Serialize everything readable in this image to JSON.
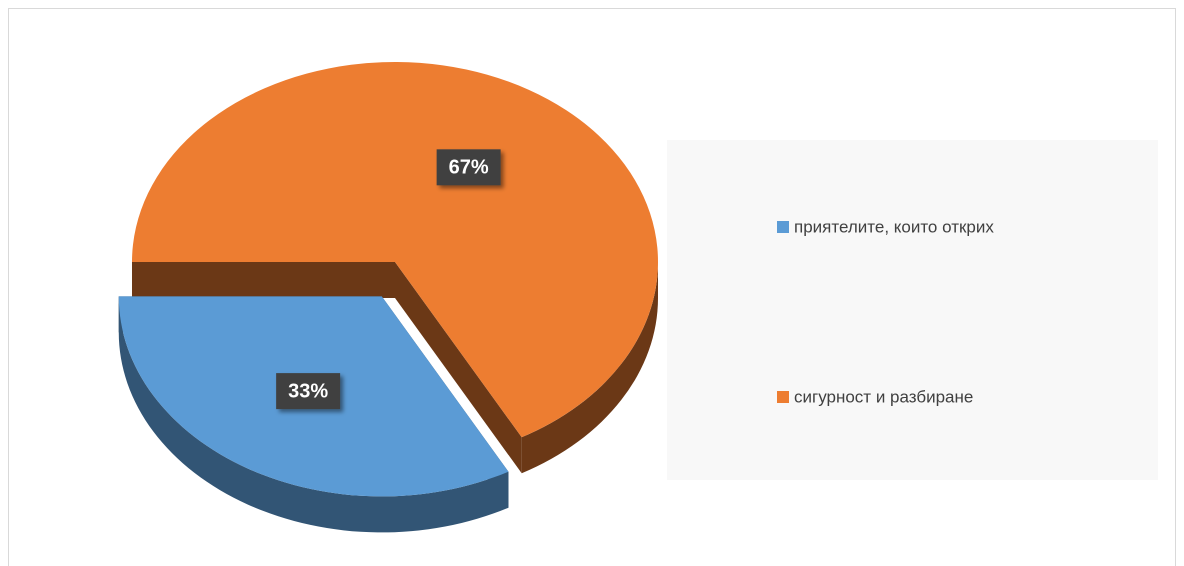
{
  "chart_data": {
    "type": "pie",
    "categories": [
      "приятелите, които открих",
      "сигурност и разбиране"
    ],
    "values": [
      33,
      67
    ],
    "value_labels": [
      "33%",
      "67%"
    ],
    "colors": [
      "#5b9bd5",
      "#ed7d31"
    ],
    "exploded": [
      true,
      false
    ],
    "three_d": true,
    "legend": "right"
  }
}
